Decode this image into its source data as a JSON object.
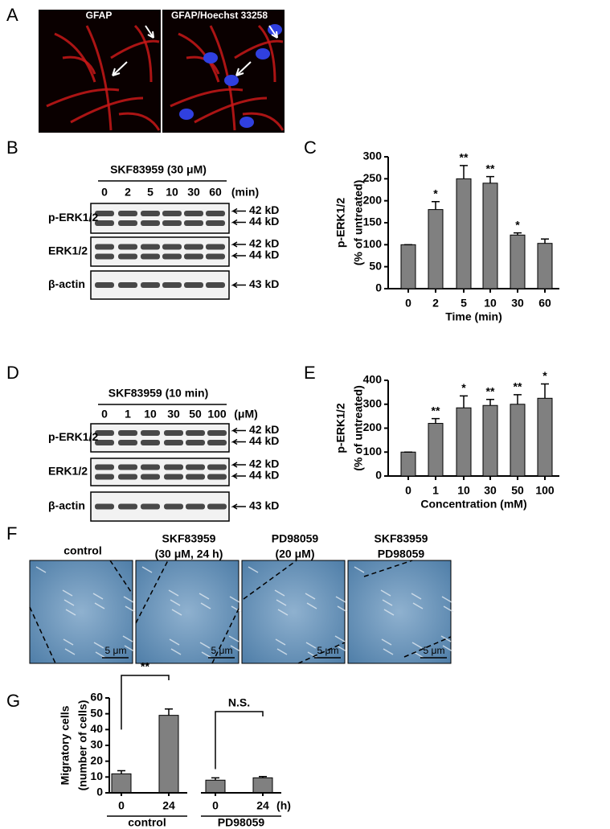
{
  "panel_labels": [
    "A",
    "B",
    "C",
    "D",
    "E",
    "F",
    "G"
  ],
  "panel_a": {
    "images": [
      "GFAP",
      "GFAP/Hoechst 33258"
    ]
  },
  "blots": [
    {
      "treatment": "SKF83959 (30 μM)",
      "lanes": [
        "0",
        "2",
        "5",
        "10",
        "30",
        "60"
      ],
      "unit": "(min)",
      "rows": [
        {
          "label": "p-ERK1/2",
          "markers": [
            "42 kD",
            "44 kD"
          ]
        },
        {
          "label": "ERK1/2",
          "markers": [
            "42 kD",
            "44 kD"
          ]
        },
        {
          "label": "β-actin",
          "markers": [
            "43 kD"
          ]
        }
      ]
    },
    {
      "treatment": "SKF83959 (10 min)",
      "lanes": [
        "0",
        "1",
        "10",
        "30",
        "50",
        "100"
      ],
      "unit": "(μM)",
      "rows": [
        {
          "label": "p-ERK1/2",
          "markers": [
            "42 kD",
            "44 kD"
          ]
        },
        {
          "label": "ERK1/2",
          "markers": [
            "42 kD",
            "44 kD"
          ]
        },
        {
          "label": "β-actin",
          "markers": [
            "43 kD"
          ]
        }
      ]
    }
  ],
  "panel_f": {
    "captions": [
      [
        "control"
      ],
      [
        "SKF83959",
        "(30 μM, 24 h)"
      ],
      [
        "PD98059",
        "(20 μM)"
      ],
      [
        "SKF83959",
        "PD98059"
      ]
    ],
    "scale_label": "5 μm"
  },
  "chart_data": [
    {
      "type": "bar",
      "ylabel": [
        "p-ERK1/2",
        "(% of untreated)"
      ],
      "xlabel": "Time (min)",
      "categories": [
        "0",
        "2",
        "5",
        "10",
        "30",
        "60"
      ],
      "values": [
        100,
        180,
        250,
        240,
        122,
        103
      ],
      "errors": [
        0,
        18,
        30,
        15,
        5,
        10
      ],
      "significance": [
        null,
        "*",
        "**",
        "**",
        "*",
        null
      ],
      "color": "#808080",
      "ylim": [
        0,
        300
      ],
      "yticks": [
        0,
        50,
        100,
        150,
        200,
        250,
        300
      ]
    },
    {
      "type": "bar",
      "ylabel": [
        "p-ERK1/2",
        "(% of untreated)"
      ],
      "xlabel": "Concentration (mM)",
      "categories": [
        "0",
        "1",
        "10",
        "30",
        "50",
        "100"
      ],
      "values": [
        100,
        220,
        285,
        295,
        300,
        325
      ],
      "errors": [
        0,
        20,
        50,
        25,
        40,
        60
      ],
      "significance": [
        null,
        "**",
        "*",
        "**",
        "**",
        "*"
      ],
      "color": "#808080",
      "ylim": [
        0,
        400
      ],
      "yticks": [
        0,
        100,
        200,
        300,
        400
      ]
    },
    {
      "type": "bar",
      "ylabel": [
        "Migratory cells",
        "(number of cells)"
      ],
      "x_unit": "(h)",
      "categories": [
        "0",
        "24",
        "0",
        "24"
      ],
      "groups": [
        "control",
        "PD98059"
      ],
      "values": [
        12,
        49,
        8,
        9.5
      ],
      "errors": [
        2,
        4,
        1.5,
        0.8
      ],
      "annotations": [
        "**",
        "N.S."
      ],
      "color": "#808080",
      "ylim": [
        0,
        60
      ],
      "yticks": [
        0,
        10,
        20,
        30,
        40,
        50,
        60
      ]
    }
  ]
}
